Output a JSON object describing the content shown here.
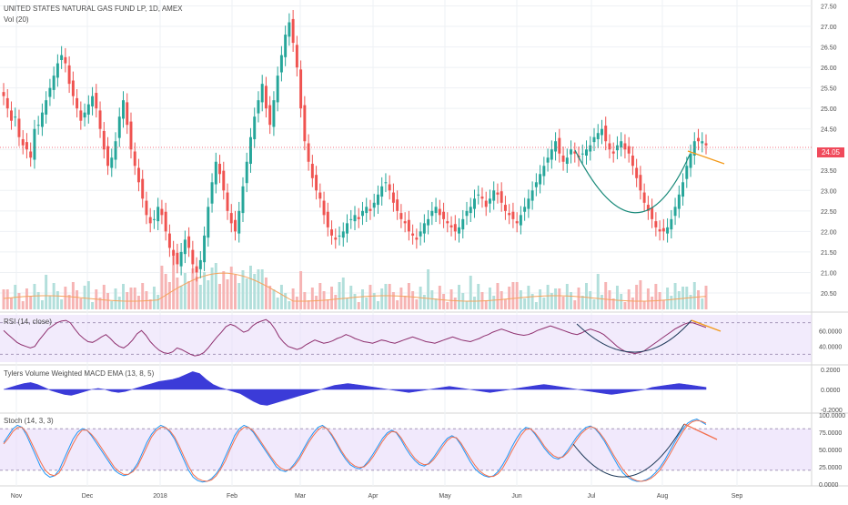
{
  "header": {
    "symbol_title": "UNITED STATES NATURAL GAS FUND LP, 1D, AMEX",
    "volume_label": "Vol (20)"
  },
  "panes": {
    "rsi_label": "RSI (14, close)",
    "macd_label": "Tylers Volume Weighted MACD EMA (13, 8, 5)",
    "stoch_label": "Stoch (14, 3, 3)"
  },
  "last_price_tag": "24.05",
  "colors": {
    "up": "#26a69a",
    "down": "#ef5350",
    "vol_up": "#b2dfdb",
    "vol_down": "#f6b4b4",
    "vol_ma": "#f5a35c",
    "rsi_line": "#8e2f6e",
    "macd_fill": "#3b3bd8",
    "stoch_k": "#2196f3",
    "stoch_d": "#f2704f",
    "band_fill": "#e7dafa",
    "cup_curve": "#1a8a7a",
    "divergence": "#f39a1b",
    "last_price": "#f04a5b"
  },
  "chart_data": [
    {
      "type": "candlestick",
      "title": "UNITED STATES NATURAL GAS FUND LP, 1D, AMEX",
      "x_tick_labels": [
        "Nov",
        "Dec",
        "2018",
        "Feb",
        "Mar",
        "Apr",
        "May",
        "Jun",
        "Jul",
        "Aug",
        "Sep"
      ],
      "y_tick_labels": [
        "20.50",
        "21.00",
        "21.50",
        "22.00",
        "22.50",
        "23.00",
        "23.50",
        "24.00",
        "24.50",
        "25.00",
        "25.50",
        "26.00",
        "26.50",
        "27.00",
        "27.50"
      ],
      "ylim": [
        20.1,
        27.6
      ],
      "last_price": 24.05,
      "close_series": [
        25.3,
        25.0,
        24.7,
        24.8,
        24.3,
        24.1,
        24.0,
        23.8,
        24.5,
        24.6,
        24.9,
        25.2,
        25.5,
        25.8,
        26.1,
        26.3,
        26.1,
        25.6,
        25.3,
        25.0,
        24.7,
        24.9,
        25.1,
        25.3,
        25.0,
        24.5,
        24.0,
        23.6,
        23.8,
        24.2,
        24.8,
        25.2,
        24.6,
        24.0,
        23.6,
        23.2,
        22.8,
        22.4,
        22.2,
        22.3,
        22.6,
        22.4,
        22.0,
        21.6,
        21.4,
        21.2,
        21.5,
        21.8,
        21.6,
        21.2,
        21.0,
        21.3,
        21.9,
        22.6,
        23.2,
        23.7,
        23.4,
        23.0,
        22.5,
        22.2,
        22.0,
        22.5,
        23.1,
        23.7,
        24.3,
        24.8,
        25.2,
        25.6,
        25.0,
        24.6,
        25.2,
        25.8,
        26.3,
        26.8,
        27.1,
        26.6,
        26.0,
        25.0,
        24.2,
        23.7,
        23.3,
        23.0,
        22.8,
        22.4,
        22.1,
        21.9,
        21.8,
        21.9,
        22.0,
        22.2,
        22.3,
        22.4,
        22.3,
        22.5,
        22.6,
        22.5,
        22.7,
        22.9,
        23.1,
        23.2,
        23.0,
        22.7,
        22.5,
        22.3,
        22.2,
        22.0,
        21.9,
        21.8,
        22.0,
        22.2,
        22.3,
        22.5,
        22.6,
        22.4,
        22.3,
        22.2,
        22.1,
        22.0,
        22.1,
        22.3,
        22.5,
        22.6,
        22.8,
        22.9,
        22.8,
        22.6,
        22.8,
        23.0,
        22.9,
        22.7,
        22.5,
        22.4,
        22.3,
        22.2,
        22.4,
        22.6,
        22.8,
        23.0,
        23.2,
        23.4,
        23.6,
        23.8,
        24.0,
        24.2,
        23.9,
        23.7,
        23.8,
        24.0,
        23.9,
        23.8,
        23.9,
        24.0,
        24.1,
        24.3,
        24.4,
        24.5,
        24.2,
        24.0,
        23.9,
        24.1,
        24.2,
        24.0,
        23.9,
        23.6,
        23.3,
        23.0,
        22.7,
        22.5,
        22.3,
        22.1,
        22.0,
        22.0,
        22.1,
        22.3,
        22.6,
        22.9,
        23.2,
        23.6,
        23.9,
        24.2,
        24.2,
        24.2,
        24.1
      ],
      "volume_ma_label": "Vol (20)"
    },
    {
      "type": "line",
      "title": "RSI (14, close)",
      "y_tick_labels": [
        "40.0000",
        "60.0000"
      ],
      "ylim": [
        20,
        80
      ],
      "bands": [
        30,
        70
      ],
      "values": [
        60,
        55,
        50,
        45,
        42,
        40,
        38,
        40,
        48,
        55,
        62,
        66,
        70,
        72,
        73,
        70,
        62,
        55,
        50,
        46,
        45,
        48,
        52,
        55,
        50,
        44,
        40,
        38,
        42,
        48,
        56,
        60,
        54,
        46,
        40,
        35,
        32,
        31,
        33,
        38,
        36,
        33,
        30,
        28,
        29,
        32,
        38,
        45,
        52,
        58,
        65,
        68,
        66,
        62,
        58,
        60,
        66,
        70,
        72,
        74,
        70,
        62,
        52,
        45,
        40,
        38,
        36,
        38,
        42,
        45,
        48,
        46,
        44,
        45,
        47,
        50,
        52,
        55,
        53,
        50,
        48,
        46,
        45,
        44,
        46,
        48,
        47,
        45,
        44,
        46,
        48,
        50,
        52,
        50,
        48,
        46,
        45,
        44,
        46,
        48,
        50,
        52,
        50,
        48,
        47,
        46,
        48,
        50,
        53,
        55,
        58,
        60,
        62,
        60,
        58,
        56,
        55,
        54,
        55,
        57,
        60,
        62,
        64,
        66,
        64,
        62,
        60,
        58,
        56,
        55,
        57,
        60,
        62,
        60,
        58,
        55,
        50,
        45,
        40,
        36,
        33,
        32,
        31,
        32,
        34,
        38,
        42,
        46,
        50,
        54,
        58,
        62,
        65,
        68,
        70,
        70,
        68,
        66,
        64
      ],
      "annotation": "bearish divergence line"
    },
    {
      "type": "area",
      "title": "Tylers Volume Weighted MACD EMA (13, 8, 5)",
      "y_tick_labels": [
        "0.2000",
        "0.0000",
        "-0.2000"
      ],
      "ylim": [
        -0.22,
        0.22
      ],
      "values": [
        0.0,
        0.02,
        0.04,
        0.06,
        0.07,
        0.05,
        0.02,
        -0.01,
        -0.03,
        -0.05,
        -0.06,
        -0.04,
        -0.02,
        0.0,
        0.01,
        0.0,
        -0.02,
        -0.03,
        -0.02,
        0.0,
        0.02,
        0.04,
        0.06,
        0.08,
        0.09,
        0.1,
        0.12,
        0.15,
        0.18,
        0.16,
        0.1,
        0.05,
        0.02,
        0.0,
        -0.02,
        -0.04,
        -0.08,
        -0.12,
        -0.15,
        -0.16,
        -0.14,
        -0.12,
        -0.1,
        -0.08,
        -0.06,
        -0.04,
        -0.02,
        0.0,
        0.02,
        0.04,
        0.05,
        0.06,
        0.05,
        0.04,
        0.03,
        0.02,
        0.01,
        0.0,
        -0.01,
        -0.02,
        -0.03,
        -0.02,
        -0.01,
        0.0,
        0.01,
        0.02,
        0.03,
        0.02,
        0.01,
        0.0,
        -0.01,
        -0.02,
        -0.03,
        -0.02,
        -0.01,
        0.0,
        0.01,
        0.02,
        0.03,
        0.04,
        0.05,
        0.04,
        0.03,
        0.02,
        0.01,
        0.0,
        -0.01,
        -0.02,
        -0.03,
        -0.04,
        -0.05,
        -0.04,
        -0.03,
        -0.02,
        -0.01,
        0.0,
        0.02,
        0.03,
        0.04,
        0.05,
        0.06,
        0.05,
        0.04,
        0.03,
        0.02
      ]
    },
    {
      "type": "line",
      "title": "Stoch (14, 3, 3)",
      "y_tick_labels": [
        "100.0000",
        "75.0000",
        "50.0000",
        "25.0000",
        "0.0000"
      ],
      "ylim": [
        0,
        100
      ],
      "bands": [
        20,
        80
      ],
      "series": [
        {
          "name": "%K",
          "values": [
            60,
            70,
            80,
            85,
            82,
            70,
            55,
            40,
            25,
            15,
            10,
            12,
            20,
            35,
            50,
            65,
            75,
            80,
            78,
            70,
            60,
            50,
            40,
            30,
            20,
            15,
            12,
            14,
            20,
            30,
            45,
            60,
            72,
            80,
            85,
            82,
            75,
            65,
            50,
            35,
            20,
            10,
            5,
            3,
            4,
            8,
            15,
            25,
            40,
            55,
            70,
            80,
            85,
            82,
            75,
            65,
            55,
            45,
            35,
            25,
            20,
            18,
            22,
            30,
            40,
            52,
            64,
            74,
            82,
            85,
            80,
            70,
            58,
            46,
            36,
            28,
            24,
            22,
            26,
            34,
            44,
            55,
            66,
            74,
            78,
            74,
            64,
            52,
            42,
            34,
            28,
            26,
            30,
            38,
            48,
            58,
            66,
            70,
            66,
            56,
            44,
            32,
            22,
            16,
            12,
            10,
            12,
            18,
            28,
            40,
            54,
            66,
            76,
            82,
            80,
            72,
            62,
            52,
            44,
            38,
            36,
            40,
            48,
            58,
            68,
            76,
            82,
            84,
            80,
            72,
            62,
            50,
            38,
            26,
            16,
            10,
            6,
            4,
            4,
            6,
            10,
            16,
            24,
            34,
            46,
            58,
            70,
            80,
            88,
            92,
            94,
            90,
            86
          ]
        },
        {
          "name": "%D",
          "values": [
            58,
            66,
            76,
            82,
            82,
            74,
            60,
            46,
            32,
            20,
            14,
            12,
            16,
            28,
            44,
            58,
            70,
            78,
            78,
            72,
            64,
            54,
            44,
            34,
            24,
            18,
            14,
            14,
            18,
            26,
            40,
            54,
            68,
            77,
            82,
            82,
            77,
            68,
            55,
            40,
            26,
            14,
            8,
            5,
            4,
            6,
            12,
            22,
            34,
            50,
            64,
            76,
            82,
            82,
            77,
            68,
            58,
            48,
            38,
            29,
            23,
            20,
            21,
            27,
            36,
            48,
            60,
            70,
            78,
            83,
            80,
            72,
            61,
            49,
            39,
            31,
            26,
            24,
            25,
            31,
            40,
            51,
            62,
            71,
            76,
            75,
            67,
            56,
            46,
            37,
            31,
            28,
            29,
            35,
            44,
            54,
            63,
            68,
            67,
            59,
            48,
            37,
            27,
            19,
            14,
            11,
            11,
            15,
            23,
            35,
            48,
            60,
            71,
            79,
            80,
            74,
            65,
            55,
            47,
            41,
            38,
            39,
            45,
            54,
            64,
            73,
            79,
            83,
            81,
            74,
            65,
            54,
            42,
            31,
            21,
            13,
            8,
            5,
            4,
            5,
            8,
            13,
            20,
            30,
            41,
            53,
            65,
            76,
            85,
            90,
            92,
            91,
            88
          ]
        }
      ]
    }
  ]
}
